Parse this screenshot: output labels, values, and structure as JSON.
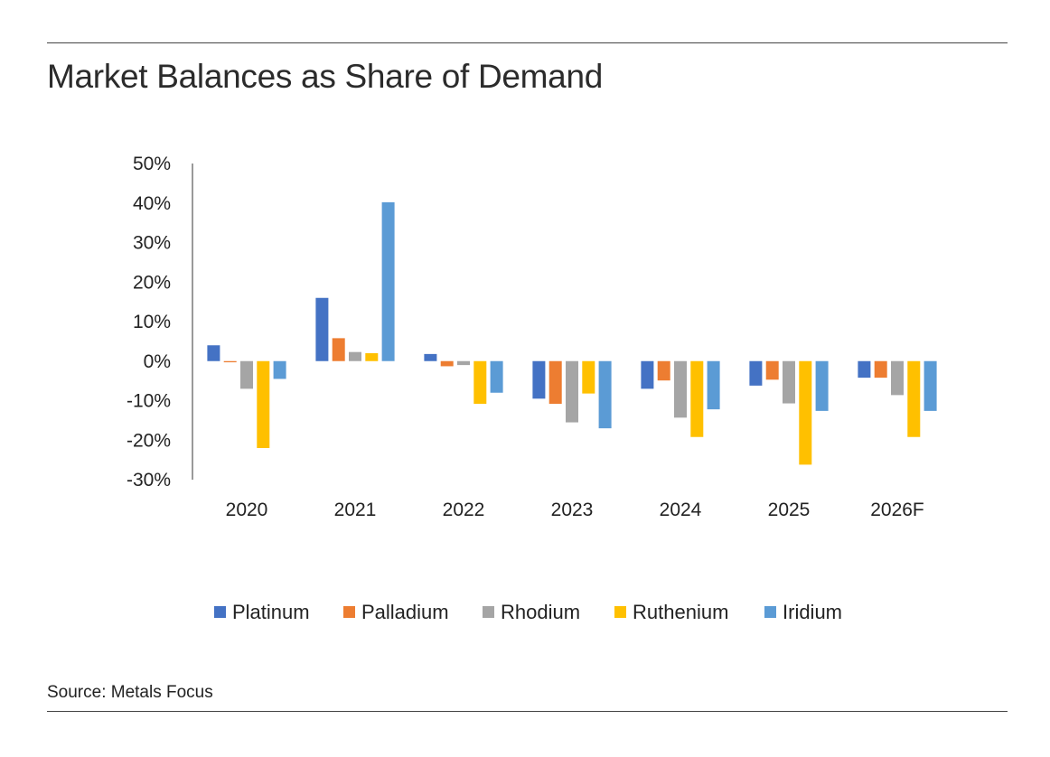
{
  "title": "Market Balances as Share of Demand",
  "source": "Source: Metals Focus",
  "chart_data": {
    "type": "bar",
    "title": "Market Balances as Share of Demand",
    "xlabel": "",
    "ylabel": "",
    "categories": [
      "2020",
      "2021",
      "2022",
      "2023",
      "2024",
      "2025",
      "2026F"
    ],
    "y_tick_labels": [
      "50%",
      "40%",
      "30%",
      "20%",
      "10%",
      "0%",
      "-10%",
      "-20%",
      "-30%"
    ],
    "ylim": [
      -30,
      50
    ],
    "grid": false,
    "legend_position": "bottom",
    "series": [
      {
        "name": "Platinum",
        "color": "#4472C4",
        "values": [
          4,
          16,
          1.8,
          -9.5,
          -7,
          -6.2,
          -4.2
        ]
      },
      {
        "name": "Palladium",
        "color": "#ED7D31",
        "values": [
          -0.3,
          5.8,
          -1.3,
          -10.8,
          -4.9,
          -4.7,
          -4.2
        ]
      },
      {
        "name": "Rhodium",
        "color": "#A5A5A5",
        "values": [
          -7,
          2.3,
          -1,
          -15.5,
          -14.3,
          -10.7,
          -8.6
        ]
      },
      {
        "name": "Ruthenium",
        "color": "#FFC000",
        "values": [
          -22,
          2,
          -10.8,
          -8.2,
          -19.2,
          -26.2,
          -19.2
        ]
      },
      {
        "name": "Iridium",
        "color": "#5B9BD5",
        "values": [
          -4.5,
          40.2,
          -8,
          -17,
          -12.2,
          -12.6,
          -12.6
        ]
      }
    ]
  }
}
